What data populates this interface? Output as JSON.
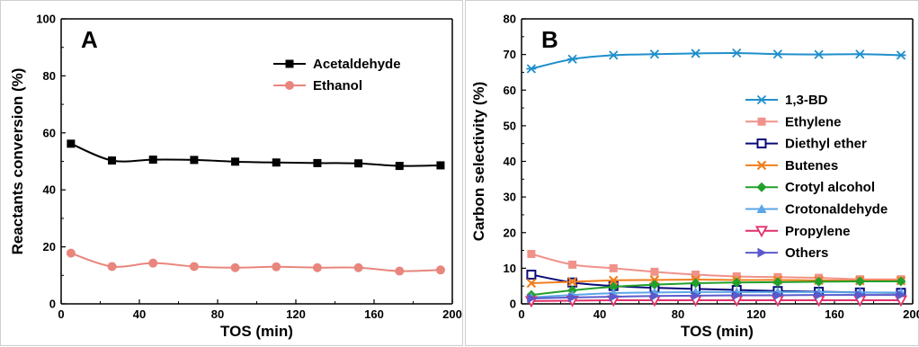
{
  "chart_data": [
    {
      "panel_label": "A",
      "type": "line",
      "xlabel": "TOS (min)",
      "ylabel": "Reactants conversion (%)",
      "xlim": [
        0,
        200
      ],
      "ylim": [
        0,
        100
      ],
      "xticks": [
        "0",
        "40",
        "80",
        "120",
        "160",
        "200"
      ],
      "yticks": [
        "0",
        "20",
        "40",
        "60",
        "80",
        "100"
      ],
      "grid": false,
      "legend_position": "top-right",
      "series": [
        {
          "name": "Acetaldehyde",
          "color": "#000000",
          "marker": "square",
          "x": [
            5,
            26,
            47,
            68,
            89,
            110,
            131,
            152,
            173,
            194
          ],
          "y": [
            56.2,
            50.3,
            50.6,
            50.5,
            49.9,
            49.6,
            49.4,
            49.3,
            48.4,
            48.6
          ]
        },
        {
          "name": "Ethanol",
          "color": "#e8867d",
          "marker": "circle",
          "x": [
            5,
            26,
            47,
            68,
            89,
            110,
            131,
            152,
            173,
            194
          ],
          "y": [
            17.8,
            13.1,
            14.3,
            13.1,
            12.7,
            13.0,
            12.7,
            12.7,
            11.5,
            11.9
          ]
        }
      ]
    },
    {
      "panel_label": "B",
      "type": "line",
      "xlabel": "TOS (min)",
      "ylabel": "Carbon selectivity (%)",
      "xlim": [
        0,
        200
      ],
      "ylim": [
        0,
        80
      ],
      "xticks": [
        "0",
        "40",
        "80",
        "120",
        "160",
        "200"
      ],
      "yticks": [
        "0",
        "10",
        "20",
        "30",
        "40",
        "50",
        "60",
        "70",
        "80"
      ],
      "grid": false,
      "legend_position": "center-right",
      "series": [
        {
          "name": "1,3-BD",
          "color": "#1f8fcc",
          "marker": "asterisk",
          "x": [
            5,
            26,
            47,
            68,
            89,
            110,
            131,
            152,
            173,
            194
          ],
          "y": [
            66.0,
            68.7,
            69.8,
            70.1,
            70.3,
            70.4,
            70.1,
            70.0,
            70.1,
            69.8
          ]
        },
        {
          "name": "Ethylene",
          "color": "#f0928a",
          "marker": "square",
          "x": [
            5,
            26,
            47,
            68,
            89,
            110,
            131,
            152,
            173,
            194
          ],
          "y": [
            14.0,
            11.0,
            10.0,
            9.0,
            8.2,
            7.7,
            7.5,
            7.3,
            6.9,
            6.9
          ]
        },
        {
          "name": "Diethyl ether",
          "color": "#0a0a7a",
          "marker": "open-square",
          "x": [
            5,
            26,
            47,
            68,
            89,
            110,
            131,
            152,
            173,
            194
          ],
          "y": [
            8.2,
            6.0,
            5.0,
            4.5,
            4.2,
            3.9,
            3.6,
            3.4,
            3.2,
            3.1
          ]
        },
        {
          "name": "Butenes",
          "color": "#f07f1e",
          "marker": "x",
          "x": [
            5,
            26,
            47,
            68,
            89,
            110,
            131,
            152,
            173,
            194
          ],
          "y": [
            5.8,
            6.2,
            6.6,
            6.7,
            6.8,
            6.7,
            6.7,
            6.6,
            6.5,
            6.5
          ]
        },
        {
          "name": "Crotyl alcohol",
          "color": "#22a02a",
          "marker": "diamond",
          "x": [
            5,
            26,
            47,
            68,
            89,
            110,
            131,
            152,
            173,
            194
          ],
          "y": [
            2.5,
            3.8,
            4.8,
            5.4,
            5.8,
            6.0,
            6.1,
            6.2,
            6.3,
            6.3
          ]
        },
        {
          "name": "Crotonaldehyde",
          "color": "#5aa6e8",
          "marker": "triangle-up",
          "x": [
            5,
            26,
            47,
            68,
            89,
            110,
            131,
            152,
            173,
            194
          ],
          "y": [
            1.8,
            2.5,
            3.0,
            3.2,
            3.3,
            3.3,
            3.3,
            3.3,
            3.2,
            3.2
          ]
        },
        {
          "name": "Propylene",
          "color": "#e0306a",
          "marker": "triangle-down",
          "x": [
            5,
            26,
            47,
            68,
            89,
            110,
            131,
            152,
            173,
            194
          ],
          "y": [
            0.8,
            0.9,
            1.0,
            1.0,
            1.0,
            1.0,
            1.0,
            1.0,
            1.0,
            1.0
          ]
        },
        {
          "name": "Others",
          "color": "#5a5acc",
          "marker": "triangle-right",
          "x": [
            5,
            26,
            47,
            68,
            89,
            110,
            131,
            152,
            173,
            194
          ],
          "y": [
            1.5,
            1.8,
            2.0,
            2.2,
            2.3,
            2.4,
            2.4,
            2.5,
            2.5,
            2.5
          ]
        }
      ]
    }
  ]
}
